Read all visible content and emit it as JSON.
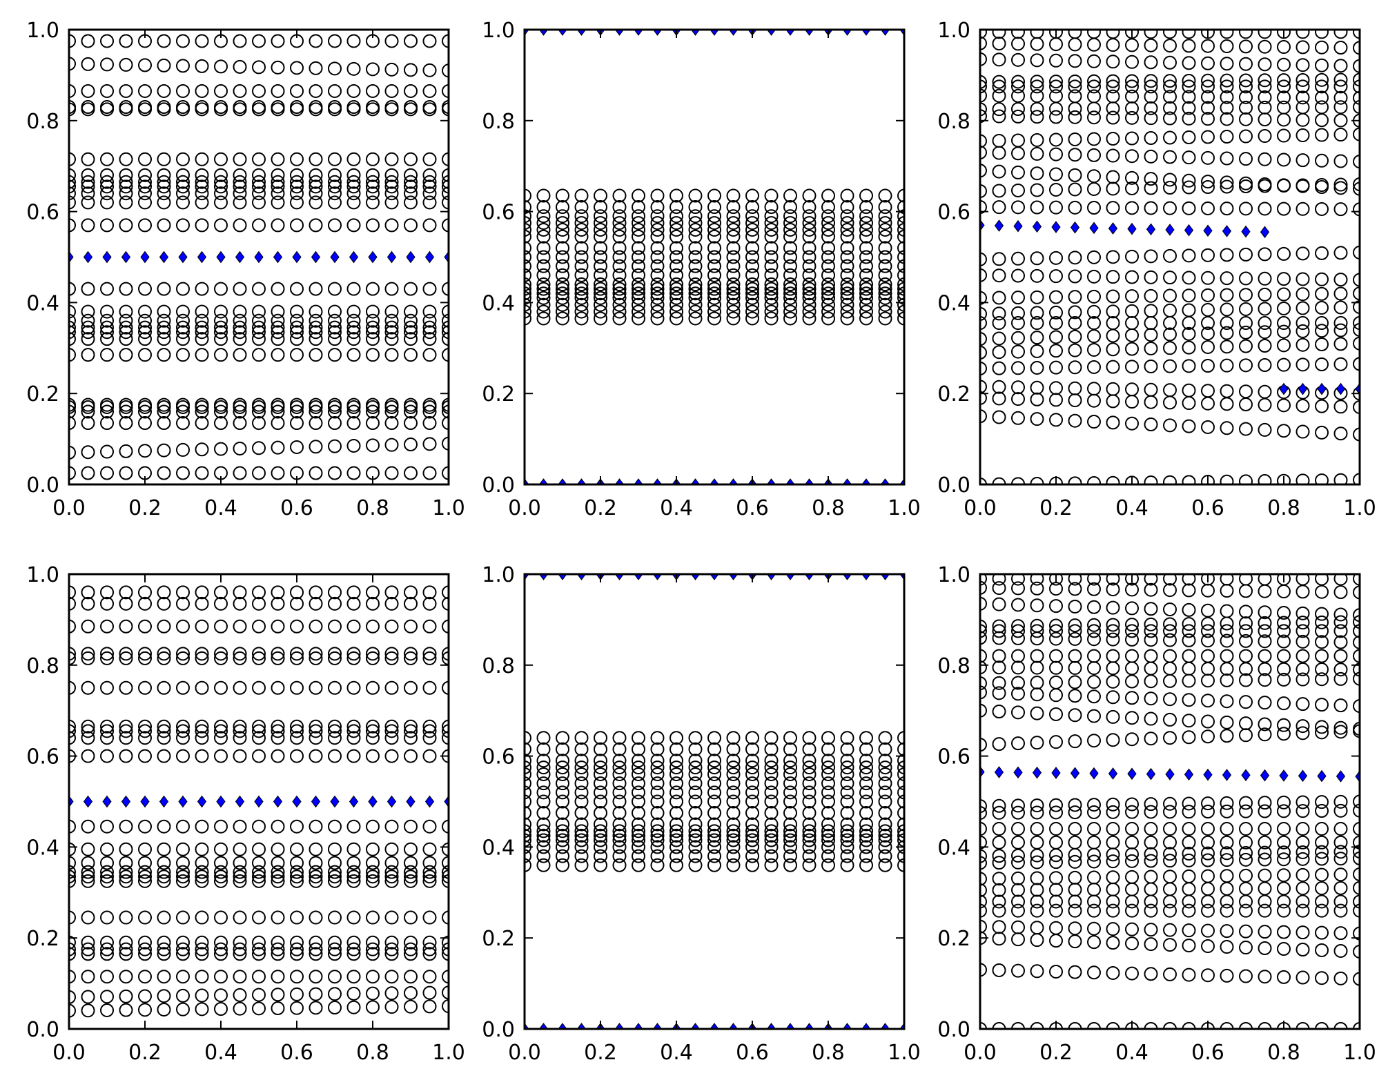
{
  "figure": {
    "title": "",
    "x_ticks": [
      "0.0",
      "0.2",
      "0.4",
      "0.6",
      "0.8",
      "1.0"
    ],
    "y_ticks": [
      "0.0",
      "0.2",
      "0.4",
      "0.6",
      "0.8",
      "1.0"
    ]
  },
  "colors": {
    "circle_edge": "#000000",
    "diamond_fill": "#0000ff",
    "diamond_edge": "#000000",
    "axis": "#000000"
  },
  "chart_data": [
    {
      "type": "scatter",
      "panel": "row1-col1",
      "xlim": [
        0,
        1
      ],
      "ylim": [
        0,
        1
      ],
      "x": [
        0,
        0.05,
        0.1,
        0.15,
        0.2,
        0.25,
        0.3,
        0.35,
        0.4,
        0.45,
        0.5,
        0.55,
        0.6,
        0.65,
        0.7,
        0.75,
        0.8,
        0.85,
        0.9,
        0.95,
        1.0
      ],
      "circle_levels": [
        [
          0.025,
          0.025
        ],
        [
          0.07,
          0.09
        ],
        [
          0.135,
          0.135
        ],
        [
          0.16,
          0.16
        ],
        [
          0.17,
          0.17
        ],
        [
          0.175,
          0.175
        ],
        [
          0.285,
          0.285
        ],
        [
          0.32,
          0.32
        ],
        [
          0.335,
          0.335
        ],
        [
          0.345,
          0.345
        ],
        [
          0.36,
          0.36
        ],
        [
          0.38,
          0.38
        ],
        [
          0.43,
          0.43
        ],
        [
          0.57,
          0.57
        ],
        [
          0.62,
          0.62
        ],
        [
          0.64,
          0.64
        ],
        [
          0.655,
          0.655
        ],
        [
          0.665,
          0.665
        ],
        [
          0.68,
          0.68
        ],
        [
          0.715,
          0.715
        ],
        [
          0.825,
          0.825
        ],
        [
          0.83,
          0.83
        ],
        [
          0.865,
          0.865
        ],
        [
          0.925,
          0.91
        ],
        [
          0.975,
          0.975
        ]
      ],
      "diamond_series": [
        {
          "x_range": [
            0,
            1.0
          ],
          "y": [
            0.5,
            0.5
          ]
        }
      ]
    },
    {
      "type": "scatter",
      "panel": "row1-col2",
      "xlim": [
        0,
        1
      ],
      "ylim": [
        0,
        1
      ],
      "x": [
        0,
        0.05,
        0.1,
        0.15,
        0.2,
        0.25,
        0.3,
        0.35,
        0.4,
        0.45,
        0.5,
        0.55,
        0.6,
        0.65,
        0.7,
        0.75,
        0.8,
        0.85,
        0.9,
        0.95,
        1.0
      ],
      "circle_levels": [
        [
          0.365,
          0.365
        ],
        [
          0.38,
          0.38
        ],
        [
          0.395,
          0.395
        ],
        [
          0.41,
          0.41
        ],
        [
          0.42,
          0.42
        ],
        [
          0.43,
          0.43
        ],
        [
          0.44,
          0.44
        ],
        [
          0.46,
          0.46
        ],
        [
          0.48,
          0.48
        ],
        [
          0.5,
          0.5
        ],
        [
          0.52,
          0.52
        ],
        [
          0.545,
          0.545
        ],
        [
          0.56,
          0.56
        ],
        [
          0.575,
          0.575
        ],
        [
          0.59,
          0.59
        ],
        [
          0.61,
          0.61
        ],
        [
          0.635,
          0.635
        ]
      ],
      "diamond_series": [
        {
          "x_range": [
            0,
            1.0
          ],
          "y": [
            0.0,
            0.0
          ]
        },
        {
          "x_range": [
            0,
            1.0
          ],
          "y": [
            1.0,
            1.0
          ]
        }
      ]
    },
    {
      "type": "scatter",
      "panel": "row1-col3",
      "xlim": [
        0,
        1
      ],
      "ylim": [
        0,
        1
      ],
      "x": [
        0,
        0.05,
        0.1,
        0.15,
        0.2,
        0.25,
        0.3,
        0.35,
        0.4,
        0.45,
        0.5,
        0.55,
        0.6,
        0.65,
        0.7,
        0.75,
        0.8,
        0.85,
        0.9,
        0.95,
        1.0
      ],
      "circle_levels": [
        [
          0.0,
          0.01
        ],
        [
          0.15,
          0.11
        ],
        [
          0.19,
          0.17
        ],
        [
          0.215,
          0.2
        ],
        [
          0.255,
          0.265
        ],
        [
          0.29,
          0.31
        ],
        [
          0.32,
          0.34
        ],
        [
          0.355,
          0.355
        ],
        [
          0.375,
          0.39
        ],
        [
          0.41,
          0.42
        ],
        [
          0.46,
          0.45
        ],
        [
          0.495,
          0.51
        ],
        [
          0.61,
          0.605
        ],
        [
          0.645,
          0.66
        ],
        [
          0.69,
          0.65
        ],
        [
          0.73,
          0.71
        ],
        [
          0.755,
          0.77
        ],
        [
          0.81,
          0.8
        ],
        [
          0.825,
          0.83
        ],
        [
          0.855,
          0.85
        ],
        [
          0.875,
          0.875
        ],
        [
          0.885,
          0.89
        ],
        [
          0.935,
          0.92
        ],
        [
          0.97,
          0.96
        ],
        [
          0.995,
          0.995
        ]
      ],
      "diamond_series": [
        {
          "x_range": [
            0,
            0.75
          ],
          "y": [
            0.57,
            0.555
          ]
        },
        {
          "x_range": [
            0.8,
            1.0
          ],
          "y": [
            0.21,
            0.21
          ]
        }
      ]
    },
    {
      "type": "scatter",
      "panel": "row2-col1",
      "xlim": [
        0,
        1
      ],
      "ylim": [
        0,
        1
      ],
      "x": [
        0,
        0.05,
        0.1,
        0.15,
        0.2,
        0.25,
        0.3,
        0.35,
        0.4,
        0.45,
        0.5,
        0.55,
        0.6,
        0.65,
        0.7,
        0.75,
        0.8,
        0.85,
        0.9,
        0.95,
        1.0
      ],
      "circle_levels": [
        [
          0.04,
          0.05
        ],
        [
          0.07,
          0.08
        ],
        [
          0.115,
          0.115
        ],
        [
          0.165,
          0.165
        ],
        [
          0.175,
          0.175
        ],
        [
          0.19,
          0.19
        ],
        [
          0.245,
          0.245
        ],
        [
          0.325,
          0.325
        ],
        [
          0.335,
          0.335
        ],
        [
          0.345,
          0.345
        ],
        [
          0.365,
          0.365
        ],
        [
          0.395,
          0.395
        ],
        [
          0.445,
          0.445
        ],
        [
          0.6,
          0.6
        ],
        [
          0.64,
          0.64
        ],
        [
          0.655,
          0.655
        ],
        [
          0.665,
          0.665
        ],
        [
          0.75,
          0.75
        ],
        [
          0.815,
          0.815
        ],
        [
          0.825,
          0.825
        ],
        [
          0.885,
          0.885
        ],
        [
          0.935,
          0.935
        ],
        [
          0.96,
          0.96
        ]
      ],
      "diamond_series": [
        {
          "x_range": [
            0,
            1.0
          ],
          "y": [
            0.5,
            0.5
          ]
        }
      ]
    },
    {
      "type": "scatter",
      "panel": "row2-col2",
      "xlim": [
        0,
        1
      ],
      "ylim": [
        0,
        1
      ],
      "x": [
        0,
        0.05,
        0.1,
        0.15,
        0.2,
        0.25,
        0.3,
        0.35,
        0.4,
        0.45,
        0.5,
        0.55,
        0.6,
        0.65,
        0.7,
        0.75,
        0.8,
        0.85,
        0.9,
        0.95,
        1.0
      ],
      "circle_levels": [
        [
          0.36,
          0.36
        ],
        [
          0.38,
          0.38
        ],
        [
          0.4,
          0.4
        ],
        [
          0.415,
          0.415
        ],
        [
          0.425,
          0.425
        ],
        [
          0.435,
          0.435
        ],
        [
          0.45,
          0.45
        ],
        [
          0.475,
          0.475
        ],
        [
          0.5,
          0.5
        ],
        [
          0.52,
          0.52
        ],
        [
          0.54,
          0.54
        ],
        [
          0.56,
          0.56
        ],
        [
          0.575,
          0.575
        ],
        [
          0.59,
          0.59
        ],
        [
          0.615,
          0.615
        ],
        [
          0.64,
          0.64
        ]
      ],
      "diamond_series": [
        {
          "x_range": [
            0,
            1.0
          ],
          "y": [
            0.0,
            0.0
          ]
        },
        {
          "x_range": [
            0,
            1.0
          ],
          "y": [
            1.0,
            1.0
          ]
        }
      ]
    },
    {
      "type": "scatter",
      "panel": "row2-col3",
      "xlim": [
        0,
        1
      ],
      "ylim": [
        0,
        1
      ],
      "x": [
        0,
        0.05,
        0.1,
        0.15,
        0.2,
        0.25,
        0.3,
        0.35,
        0.4,
        0.45,
        0.5,
        0.55,
        0.6,
        0.65,
        0.7,
        0.75,
        0.8,
        0.85,
        0.9,
        0.95,
        1.0
      ],
      "circle_levels": [
        [
          0.0,
          0.0
        ],
        [
          0.13,
          0.11
        ],
        [
          0.2,
          0.17
        ],
        [
          0.225,
          0.21
        ],
        [
          0.26,
          0.26
        ],
        [
          0.28,
          0.28
        ],
        [
          0.305,
          0.31
        ],
        [
          0.33,
          0.34
        ],
        [
          0.365,
          0.375
        ],
        [
          0.38,
          0.39
        ],
        [
          0.41,
          0.41
        ],
        [
          0.44,
          0.44
        ],
        [
          0.475,
          0.48
        ],
        [
          0.49,
          0.5
        ],
        [
          0.625,
          0.655
        ],
        [
          0.7,
          0.66
        ],
        [
          0.74,
          0.71
        ],
        [
          0.76,
          0.77
        ],
        [
          0.795,
          0.79
        ],
        [
          0.82,
          0.82
        ],
        [
          0.86,
          0.85
        ],
        [
          0.875,
          0.875
        ],
        [
          0.885,
          0.895
        ],
        [
          0.935,
          0.91
        ],
        [
          0.97,
          0.96
        ],
        [
          0.99,
          0.99
        ]
      ],
      "diamond_series": [
        {
          "x_range": [
            0,
            1.0
          ],
          "y": [
            0.565,
            0.555
          ]
        }
      ]
    }
  ]
}
